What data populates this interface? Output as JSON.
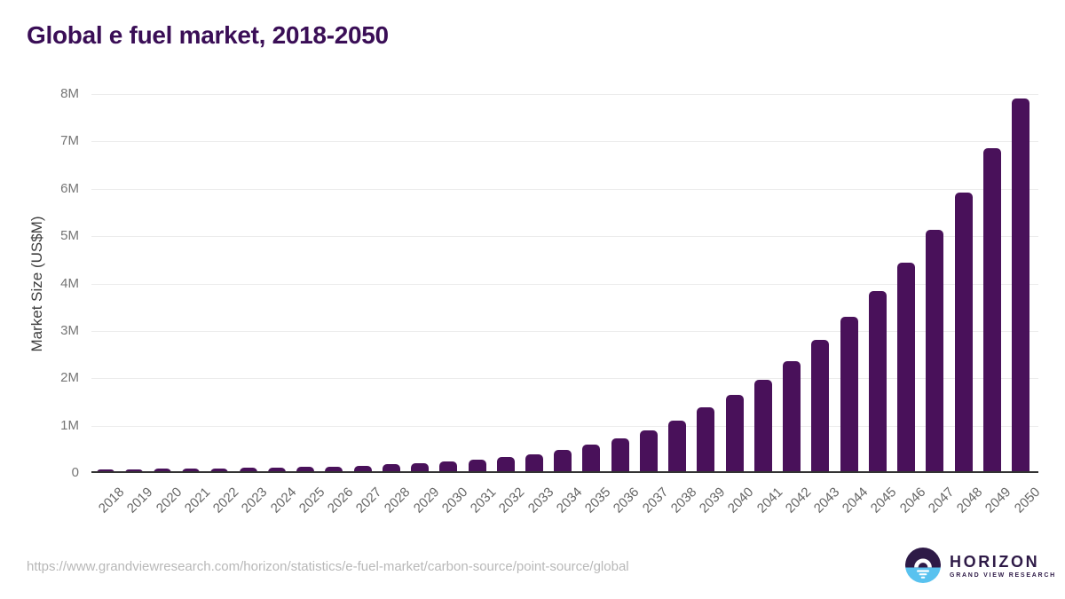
{
  "title": "Global e fuel market, 2018-2050",
  "colors": {
    "bar": "#49115a",
    "title_text": "#3a0e56",
    "gridline": "#ececec",
    "axis_line": "#333333",
    "tick_text": "#6e6e6e",
    "source_text": "#b8b8b8",
    "logo_purple": "#2e1a47",
    "logo_blue": "#59c2ef"
  },
  "chart_data": {
    "type": "bar",
    "title": "Global e fuel market, 2018-2050",
    "xlabel": "",
    "ylabel": "Market Size (US$M)",
    "units": "US$M",
    "ylim": [
      0,
      8000000
    ],
    "ytick_labels": [
      "0",
      "1M",
      "2M",
      "3M",
      "4M",
      "5M",
      "6M",
      "7M",
      "8M"
    ],
    "grid": true,
    "legend": false,
    "bar_color": "#49115a",
    "categories": [
      "2018",
      "2019",
      "2020",
      "2021",
      "2022",
      "2023",
      "2024",
      "2025",
      "2026",
      "2027",
      "2028",
      "2029",
      "2030",
      "2031",
      "2032",
      "2033",
      "2034",
      "2035",
      "2036",
      "2037",
      "2038",
      "2039",
      "2040",
      "2041",
      "2042",
      "2043",
      "2044",
      "2045",
      "2046",
      "2047",
      "2048",
      "2049",
      "2050"
    ],
    "values": [
      80000,
      85000,
      90000,
      92000,
      96000,
      105000,
      112000,
      124000,
      140000,
      160000,
      185000,
      212000,
      248000,
      290000,
      335000,
      395000,
      485000,
      595000,
      730000,
      905000,
      1110000,
      1380000,
      1650000,
      1975000,
      2370000,
      2805000,
      3295000,
      3845000,
      4440000,
      5135000,
      5930000,
      6860000,
      7910000
    ]
  },
  "footer": {
    "source_url": "https://www.grandviewresearch.com/horizon/statistics/e-fuel-market/carbon-source/point-source/global",
    "logo": {
      "name": "HORIZON",
      "subtitle": "GRAND VIEW RESEARCH"
    }
  }
}
